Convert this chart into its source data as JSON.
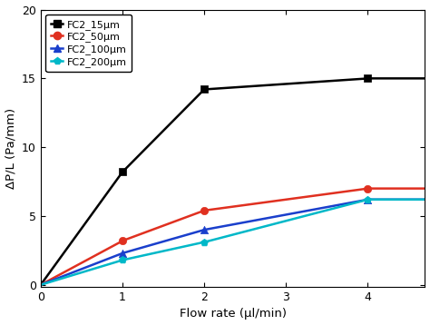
{
  "series": [
    {
      "label": "FC2_15μm",
      "color": "#000000",
      "marker": "s",
      "markersize": 6,
      "linewidth": 1.8,
      "x_data": [
        0,
        1,
        2,
        4
      ],
      "y_data": [
        0,
        8.2,
        14.2,
        15.0
      ]
    },
    {
      "label": "FC2_50μm",
      "color": "#e03020",
      "marker": "o",
      "markersize": 6,
      "linewidth": 1.8,
      "x_data": [
        0,
        1,
        2,
        4
      ],
      "y_data": [
        0,
        3.2,
        5.4,
        7.0
      ]
    },
    {
      "label": "FC2_100μm",
      "color": "#1a3fcc",
      "marker": "^",
      "markersize": 6,
      "linewidth": 1.8,
      "x_data": [
        0,
        1,
        2,
        4
      ],
      "y_data": [
        0,
        2.3,
        4.0,
        6.2
      ]
    },
    {
      "label": "FC2_200μm",
      "color": "#00b8c8",
      "marker": "p",
      "markersize": 6,
      "linewidth": 1.8,
      "x_data": [
        0,
        1,
        2,
        4
      ],
      "y_data": [
        0,
        1.8,
        3.1,
        6.2
      ]
    }
  ],
  "xlabel": "Flow rate (μl/min)",
  "ylabel": "ΔP/L (Pa/mm)",
  "xlim": [
    0,
    4.7
  ],
  "ylim": [
    -0.15,
    20
  ],
  "xticks": [
    0,
    1,
    2,
    3,
    4
  ],
  "yticks": [
    0,
    5,
    10,
    15,
    20
  ],
  "legend_loc": "upper left",
  "background_color": "#ffffff"
}
